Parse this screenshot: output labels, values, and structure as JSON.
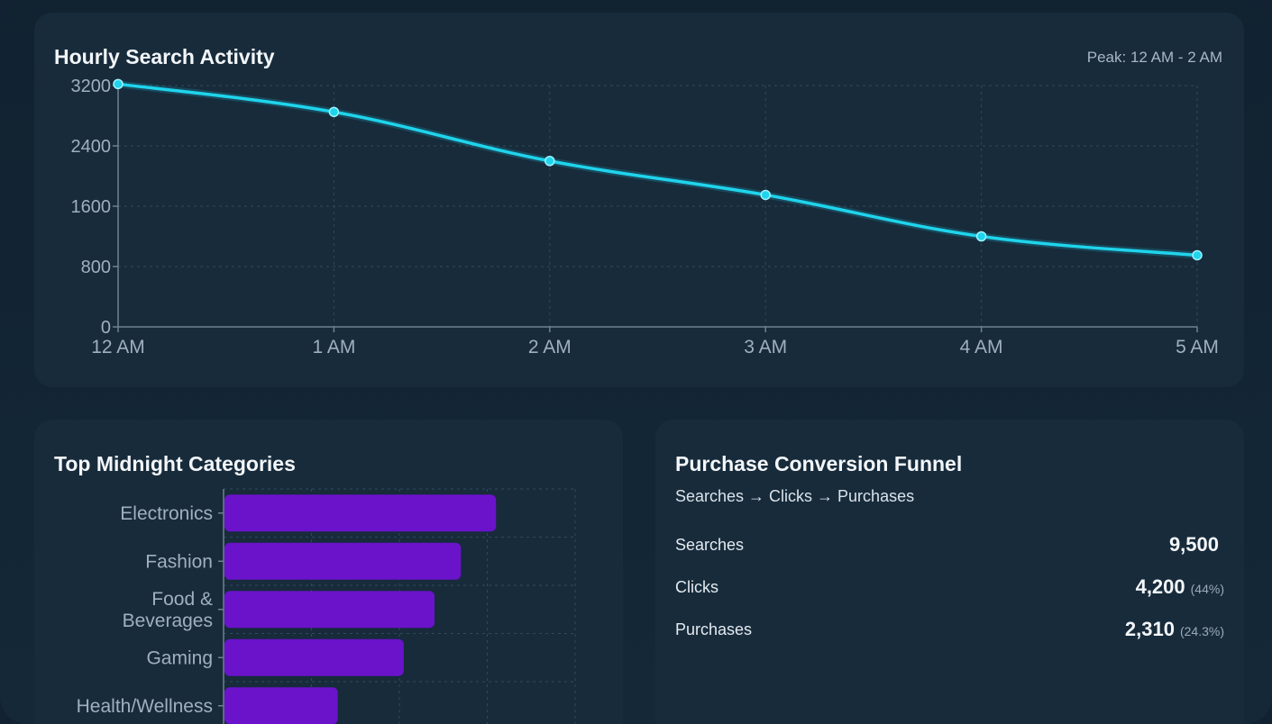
{
  "line_card": {
    "title": "Hourly Search Activity",
    "peak": "Peak: 12 AM - 2 AM"
  },
  "bar_card": {
    "title": "Top Midnight Categories"
  },
  "funnel_card": {
    "title": "Purchase Conversion Funnel",
    "subtitle": "Searches → Clicks → Purchases",
    "rows": [
      {
        "label": "Searches",
        "value": "9,500",
        "pct": ""
      },
      {
        "label": "Clicks",
        "value": "4,200",
        "pct": "(44%)"
      },
      {
        "label": "Purchases",
        "value": "2,310",
        "pct": "(24.3%)"
      }
    ]
  },
  "colors": {
    "line": "#1fd4ec",
    "bar": "#6a13cb",
    "grid": "#31485a",
    "axis_text": "#9fb0c0"
  },
  "chart_data": [
    {
      "type": "line",
      "title": "Hourly Search Activity",
      "x": [
        "12 AM",
        "1 AM",
        "2 AM",
        "3 AM",
        "4 AM",
        "5 AM"
      ],
      "values": [
        3220,
        2850,
        2200,
        1750,
        1200,
        950
      ],
      "yticks": [
        0,
        800,
        1600,
        2400,
        3200
      ],
      "ylim": [
        0,
        3200
      ],
      "grid": true,
      "legend": "none"
    },
    {
      "type": "bar",
      "orientation": "horizontal",
      "title": "Top Midnight Categories",
      "categories": [
        "Electronics",
        "Fashion",
        "Food & Beverages",
        "Gaming",
        "Health/Wellness"
      ],
      "category_lines": [
        [
          "Electronics"
        ],
        [
          "Fashion"
        ],
        [
          "Food &",
          "Beverages"
        ],
        [
          "Gaming"
        ],
        [
          "Health/Wellness"
        ]
      ],
      "values": [
        3100,
        2700,
        2400,
        2050,
        1300
      ],
      "xlim": [
        0,
        4000
      ],
      "grid": true,
      "legend": "none"
    }
  ]
}
